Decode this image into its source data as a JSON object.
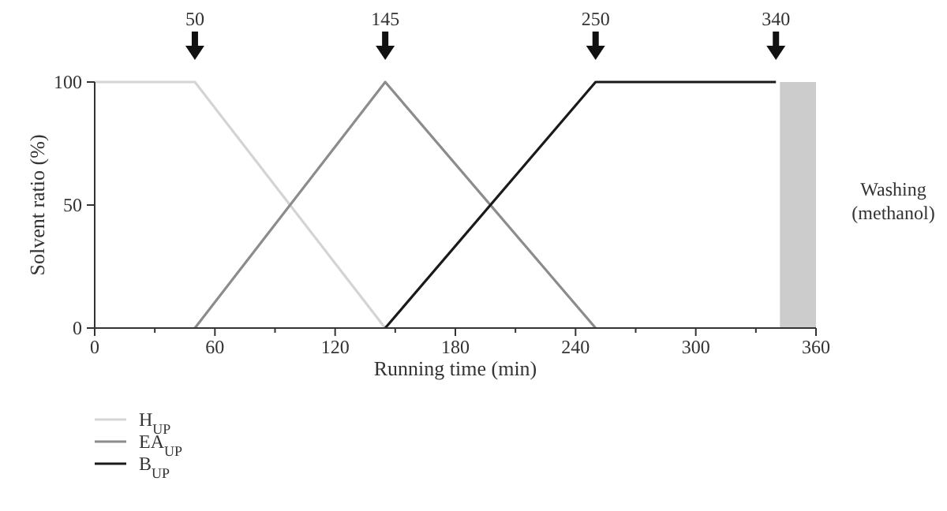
{
  "chart_data": {
    "type": "line",
    "xlabel": "Running time (min)",
    "ylabel": "Solvent ratio (%)",
    "xlim": [
      0,
      360
    ],
    "ylim": [
      0,
      100
    ],
    "xticks": [
      0,
      {
        "value": 30,
        "label": null
      },
      60,
      {
        "value": 90,
        "label": null
      },
      120,
      {
        "value": 150,
        "label": null
      },
      180,
      {
        "value": 210,
        "label": null
      },
      240,
      {
        "value": 270,
        "label": null
      },
      300,
      {
        "value": 330,
        "label": null
      },
      360
    ],
    "yticks": [
      0,
      50,
      100
    ],
    "legend": "bottom left",
    "grid": false,
    "series": [
      {
        "name": "H$_{UP}$",
        "color": "#d4d4d4",
        "x": [
          0,
          50,
          145
        ],
        "values": [
          100,
          100,
          0
        ]
      },
      {
        "name": "EA$_{UP}$",
        "color": "#8c8c8c",
        "x": [
          50,
          145,
          250
        ],
        "values": [
          0,
          100,
          0
        ]
      },
      {
        "name": "B$_{UP}$",
        "color": "#1a1a1a",
        "x": [
          145,
          250,
          340
        ],
        "values": [
          0,
          100,
          100
        ]
      }
    ],
    "bands": [
      {
        "axis": "x",
        "from": 342,
        "to": 360,
        "label": "Washing\n(methanol)",
        "color": "#cccccc"
      }
    ],
    "annotations": [
      {
        "text": "50",
        "x": 50,
        "y": 100
      },
      {
        "text": "145",
        "x": 145,
        "y": 100
      },
      {
        "text": "250",
        "x": 250,
        "y": 100
      },
      {
        "text": "340",
        "x": 340,
        "y": 100
      }
    ]
  }
}
